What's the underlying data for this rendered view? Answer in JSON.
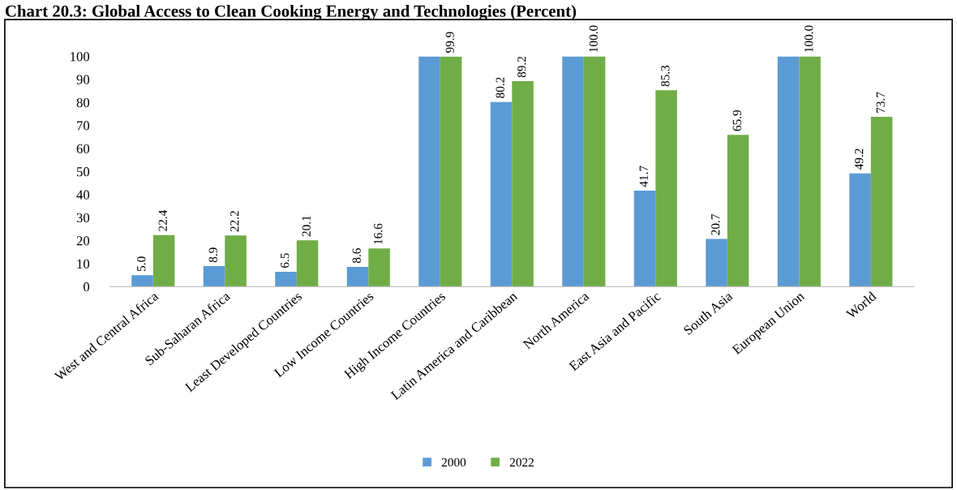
{
  "chart_data": {
    "type": "bar",
    "title": "Chart 20.3: Global Access to Clean Cooking Energy and Technologies (Percent)",
    "categories": [
      "West and Central Africa",
      "Sub-Saharan Africa",
      "Least Developed Countries",
      "Low Income Countries",
      "High Income Countries",
      "Latin America and Caribbean",
      "North America",
      "East Asia and Pacific",
      "South Asia",
      "European Union",
      "World"
    ],
    "series": [
      {
        "name": "2000",
        "color": "#5b9bd5",
        "values": [
          5.0,
          8.9,
          6.5,
          8.6,
          100.0,
          80.2,
          100.0,
          41.7,
          20.7,
          100.0,
          49.2
        ],
        "value_labels": [
          "5.0",
          "8.9",
          "6.5",
          "8.6",
          null,
          "80.2",
          null,
          "41.7",
          "20.7",
          null,
          "49.2"
        ]
      },
      {
        "name": "2022",
        "color": "#70ad47",
        "values": [
          22.4,
          22.2,
          20.1,
          16.6,
          99.9,
          89.2,
          100.0,
          85.3,
          65.9,
          100.0,
          73.7
        ],
        "value_labels": [
          "22.4",
          "22.2",
          "20.1",
          "16.6",
          "99.9",
          "89.2",
          "100.0",
          "85.3",
          "65.9",
          "100.0",
          "73.7"
        ]
      }
    ],
    "ylim": [
      0,
      100
    ],
    "yticks": [
      0,
      10,
      20,
      30,
      40,
      50,
      60,
      70,
      80,
      90,
      100
    ],
    "grid": false,
    "legend": "bottom"
  }
}
